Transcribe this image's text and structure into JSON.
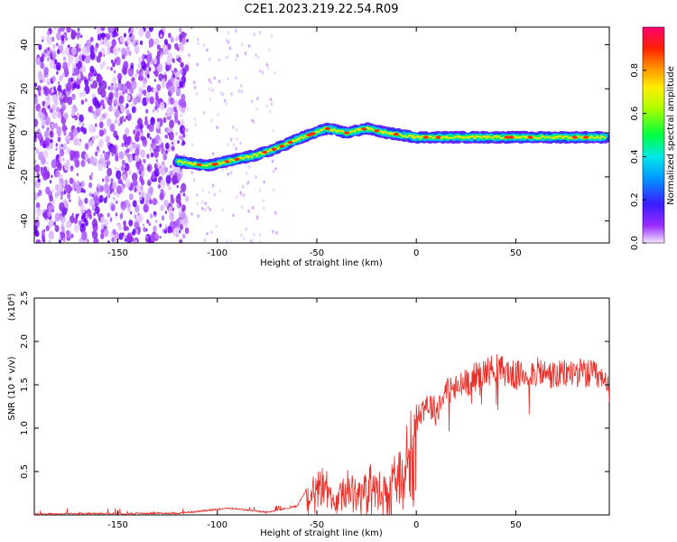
{
  "title": "C2E1.2023.219.22.54.R09",
  "chart_data": [
    {
      "type": "heatmap",
      "xlabel": "Height of straight line (km)",
      "ylabel": "Frequency (Hz)",
      "xlim": [
        -192,
        97
      ],
      "ylim": [
        -50,
        48
      ],
      "x_ticks": [
        -150,
        -100,
        -50,
        0,
        50
      ],
      "y_ticks": [
        -40,
        -20,
        0,
        20,
        40
      ],
      "colorbar": {
        "label": "Normalized spectral amplitude",
        "range": [
          0,
          1
        ],
        "ticks": [
          "0.0",
          "0.2",
          "0.4",
          "0.6",
          "0.8"
        ],
        "colormap": "rainbow-purple-to-red"
      },
      "ridge": {
        "description_points_x": [
          -120,
          -105,
          -95,
          -80,
          -70,
          -60,
          -45,
          -35,
          -25,
          -15,
          0,
          20,
          50,
          80,
          95
        ],
        "description_points_y": [
          -13,
          -15,
          -13,
          -10,
          -7,
          -3,
          2,
          0,
          2,
          0,
          -2,
          -2,
          -2,
          -2,
          -2
        ]
      },
      "noise_region_x": [
        -192,
        -115
      ]
    },
    {
      "type": "line",
      "xlabel": "Height of straight line (km)",
      "ylabel": "SNR (10 * v/v)",
      "y_scale_label": "(x10⁴)",
      "xlim": [
        -192,
        97
      ],
      "ylim": [
        0,
        2.5
      ],
      "x_ticks": [
        -150,
        -100,
        -50,
        0,
        50
      ],
      "y_ticks": [
        0.5,
        1.0,
        1.5,
        2.0,
        2.5
      ],
      "series_color": "#e8302a",
      "envelope": {
        "x": [
          -192,
          -120,
          -105,
          -95,
          -75,
          -60,
          -55,
          -50,
          -45,
          -40,
          -35,
          -30,
          -25,
          -20,
          -15,
          -10,
          -5,
          0,
          5,
          10,
          15,
          20,
          30,
          40,
          50,
          60,
          70,
          80,
          90,
          97
        ],
        "y": [
          0.01,
          0.02,
          0.05,
          0.08,
          0.03,
          0.1,
          0.3,
          0.5,
          0.5,
          0.35,
          0.5,
          0.4,
          0.6,
          0.5,
          0.5,
          0.7,
          1.0,
          1.1,
          1.3,
          1.2,
          1.45,
          1.45,
          1.6,
          1.7,
          1.6,
          1.65,
          1.6,
          1.65,
          1.6,
          1.45
        ]
      }
    }
  ]
}
